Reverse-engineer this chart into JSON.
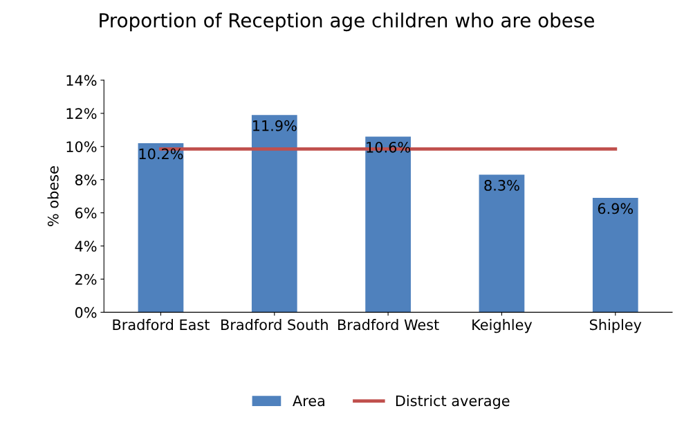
{
  "chart_data": {
    "type": "bar",
    "title": "Proportion of Reception age children who are obese",
    "ylabel": "% obese",
    "categories": [
      "Bradford East",
      "Bradford South",
      "Bradford West",
      "Keighley",
      "Shipley"
    ],
    "series": [
      {
        "name": "Area",
        "color": "#4f81bd",
        "values": [
          10.2,
          11.9,
          10.6,
          8.3,
          6.9
        ],
        "value_labels": [
          "10.2%",
          "11.9%",
          "10.6%",
          "8.3%",
          "6.9%"
        ]
      },
      {
        "name": "District average",
        "type": "line",
        "color": "#c0504d",
        "values": [
          9.85,
          9.85,
          9.85,
          9.85,
          9.85
        ]
      }
    ],
    "ylim": [
      0,
      14
    ],
    "yticks": [
      {
        "value": 0,
        "label": "0%"
      },
      {
        "value": 2,
        "label": "2%"
      },
      {
        "value": 4,
        "label": "4%"
      },
      {
        "value": 6,
        "label": "6%"
      },
      {
        "value": 8,
        "label": "8%"
      },
      {
        "value": 10,
        "label": "10%"
      },
      {
        "value": 12,
        "label": "12%"
      },
      {
        "value": 14,
        "label": "14%"
      }
    ],
    "grid": false,
    "legend": "bottom",
    "marker": "none",
    "line_style": "solid"
  }
}
